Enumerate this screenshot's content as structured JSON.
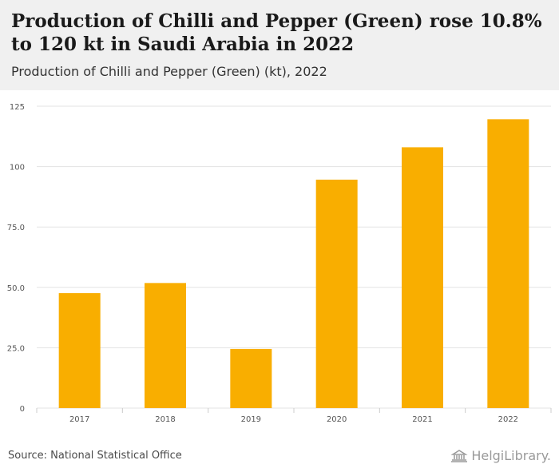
{
  "header": {
    "title": "Production of Chilli and Pepper (Green) rose 10.8% to 120 kt in Saudi Arabia in 2022",
    "subtitle": "Production of Chilli and Pepper (Green) (kt), 2022"
  },
  "footer": {
    "source": "Source: National Statistical Office",
    "brand": "HelgiLibrary."
  },
  "colors": {
    "bar": "#F9AE00",
    "grid": "#e3e3e3",
    "tick_text": "#555555",
    "header_bg": "#f0f0f0"
  },
  "chart_data": {
    "type": "bar",
    "categories": [
      "2017",
      "2018",
      "2019",
      "2020",
      "2021",
      "2022"
    ],
    "values": [
      47.6,
      51.8,
      24.5,
      94.6,
      108,
      119.6
    ],
    "y_ticks": [
      "0",
      "25.0",
      "50.0",
      "75.0",
      "100",
      "125"
    ],
    "ylim": [
      0,
      125
    ],
    "grid": true,
    "legend": "none"
  }
}
